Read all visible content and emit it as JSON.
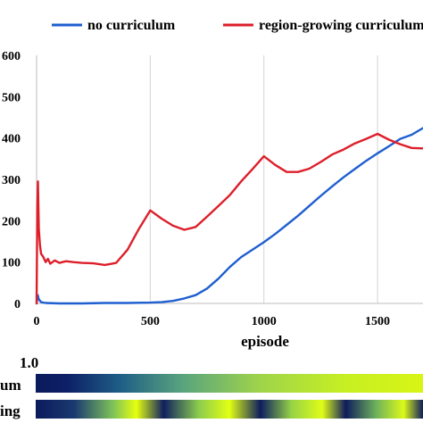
{
  "chart_data": {
    "type": "line",
    "title": "",
    "xlabel": "episode",
    "ylabel": "",
    "xlim": [
      0,
      1700
    ],
    "ylim": [
      0,
      600
    ],
    "x_ticks": [
      "0",
      "500",
      "1000",
      "1500"
    ],
    "y_ticks": [
      "0",
      "100",
      "200",
      "300",
      "400",
      "500",
      "600"
    ],
    "y_tick_values": [
      0,
      100,
      200,
      300,
      400,
      500,
      600
    ],
    "x_tick_values": [
      0,
      500,
      1000,
      1500
    ],
    "grid": "vertical",
    "legend": "top",
    "series": [
      {
        "name": "no curriculum",
        "color": "#1f5fd0",
        "x": [
          0,
          5,
          10,
          20,
          40,
          100,
          200,
          300,
          400,
          500,
          550,
          600,
          650,
          700,
          750,
          800,
          850,
          900,
          950,
          1000,
          1050,
          1100,
          1150,
          1200,
          1250,
          1300,
          1350,
          1400,
          1450,
          1500,
          1550,
          1600,
          1650,
          1700
        ],
        "values": [
          0,
          20,
          10,
          3,
          1,
          0,
          0,
          1,
          1,
          2,
          3,
          6,
          12,
          20,
          36,
          60,
          88,
          112,
          130,
          148,
          168,
          190,
          212,
          236,
          260,
          283,
          305,
          325,
          345,
          363,
          380,
          398,
          408,
          424
        ]
      },
      {
        "name": "region-growing curriculum",
        "color": "#dd1f2a",
        "x": [
          0,
          3,
          6,
          10,
          15,
          20,
          30,
          40,
          50,
          60,
          80,
          100,
          130,
          160,
          200,
          250,
          300,
          350,
          400,
          450,
          500,
          550,
          600,
          650,
          700,
          750,
          800,
          850,
          900,
          950,
          1000,
          1050,
          1100,
          1150,
          1200,
          1250,
          1300,
          1350,
          1400,
          1450,
          1500,
          1550,
          1600,
          1650,
          1700
        ],
        "values": [
          0,
          230,
          295,
          180,
          140,
          120,
          112,
          100,
          108,
          96,
          104,
          98,
          102,
          100,
          98,
          97,
          93,
          98,
          130,
          180,
          225,
          205,
          188,
          178,
          185,
          210,
          236,
          262,
          295,
          325,
          356,
          335,
          318,
          318,
          326,
          342,
          360,
          372,
          387,
          398,
          410,
          396,
          385,
          376,
          375
        ]
      }
    ]
  },
  "colorbar": {
    "label": "1.0",
    "rows": [
      {
        "label": "um"
      },
      {
        "label": "ing"
      }
    ]
  }
}
